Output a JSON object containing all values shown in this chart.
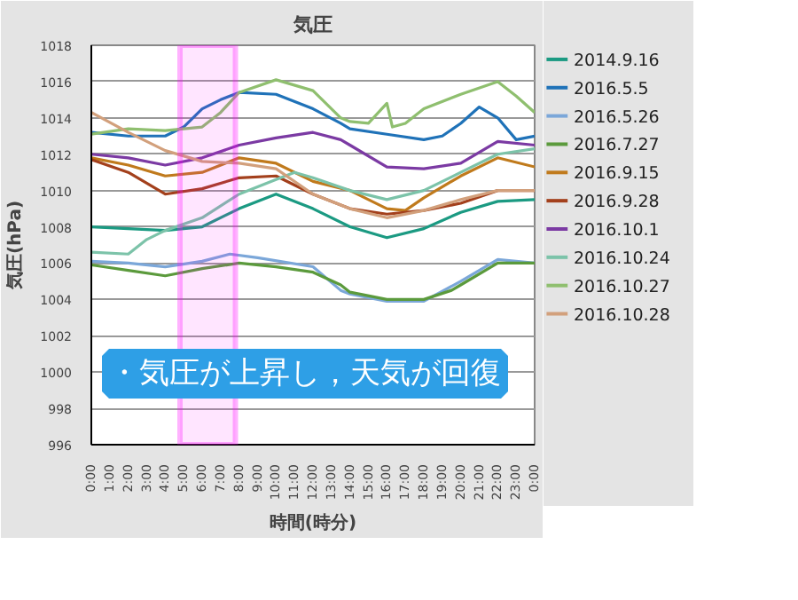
{
  "chart_data": {
    "type": "line",
    "title": "気圧",
    "xlabel": "時間(時分)",
    "ylabel": "気圧(hPa)",
    "x": [
      0,
      2,
      4,
      6,
      8,
      10,
      12,
      14,
      16,
      18,
      20,
      22,
      24
    ],
    "xlim": [
      0,
      24
    ],
    "xticks": [
      {
        "value": 0,
        "label": "0:00"
      },
      {
        "value": 1,
        "label": "1:00"
      },
      {
        "value": 2,
        "label": "2:00"
      },
      {
        "value": 3,
        "label": "3:00"
      },
      {
        "value": 4,
        "label": "4:00"
      },
      {
        "value": 5,
        "label": "5:00"
      },
      {
        "value": 6,
        "label": "6:00"
      },
      {
        "value": 7,
        "label": "7:00"
      },
      {
        "value": 8,
        "label": "8:00"
      },
      {
        "value": 9,
        "label": "9:00"
      },
      {
        "value": 10,
        "label": "10:00"
      },
      {
        "value": 11,
        "label": "11:00"
      },
      {
        "value": 12,
        "label": "12:00"
      },
      {
        "value": 13,
        "label": "13:00"
      },
      {
        "value": 14,
        "label": "14:00"
      },
      {
        "value": 15,
        "label": "15:00"
      },
      {
        "value": 16,
        "label": "16:00"
      },
      {
        "value": 17,
        "label": "17:00"
      },
      {
        "value": 18,
        "label": "18:00"
      },
      {
        "value": 19,
        "label": "19:00"
      },
      {
        "value": 20,
        "label": "20:00"
      },
      {
        "value": 21,
        "label": "21:00"
      },
      {
        "value": 22,
        "label": "22:00"
      },
      {
        "value": 23,
        "label": "23:00"
      },
      {
        "value": 24,
        "label": "0:00"
      }
    ],
    "ylim": [
      996,
      1018
    ],
    "yticks": [
      996,
      998,
      1000,
      1002,
      1004,
      1006,
      1008,
      1010,
      1012,
      1014,
      1016,
      1018
    ],
    "grid": "y",
    "legend": "right",
    "marker": "none",
    "bands": [
      {
        "axis": "x",
        "from": 4.8,
        "to": 7.8,
        "color": "#ff00ff"
      }
    ],
    "annotations": [
      "・気圧が上昇し，天気が回復"
    ],
    "series": [
      {
        "name": "2014.9.16",
        "color": "#1b9a82",
        "values": [
          1008.0,
          1007.9,
          1007.8,
          1008.0,
          1009.0,
          1009.8,
          1009.0,
          1008.0,
          1007.4,
          1007.9,
          1008.8,
          1009.4,
          1009.5
        ]
      },
      {
        "name": "2016.5.5",
        "color": "#1f72b8",
        "x": [
          0,
          2,
          4,
          5,
          6,
          7,
          8,
          10,
          12,
          13.5,
          14,
          16,
          18,
          19,
          20,
          21,
          22,
          23,
          24
        ],
        "values": [
          1013.2,
          1013.0,
          1013.0,
          1013.5,
          1014.5,
          1015.0,
          1015.4,
          1015.3,
          1014.5,
          1013.7,
          1013.4,
          1013.1,
          1012.8,
          1013.0,
          1013.7,
          1014.6,
          1014.0,
          1012.8,
          1013.0
        ]
      },
      {
        "name": "2016.5.26",
        "color": "#7ba7d9",
        "x": [
          0,
          2,
          4,
          6,
          7.5,
          9,
          12,
          13.5,
          14,
          16,
          18,
          20,
          22,
          24
        ],
        "values": [
          1006.1,
          1006.0,
          1005.8,
          1006.1,
          1006.5,
          1006.3,
          1005.8,
          1004.5,
          1004.3,
          1003.9,
          1003.9,
          1005.0,
          1006.2,
          1006.0
        ]
      },
      {
        "name": "2016.7.27",
        "color": "#5b9a3c",
        "x": [
          0,
          2,
          4,
          6,
          8,
          10,
          12,
          13.5,
          14,
          16,
          18,
          19.5,
          20,
          22,
          24
        ],
        "values": [
          1005.9,
          1005.6,
          1005.3,
          1005.7,
          1006.0,
          1005.8,
          1005.5,
          1004.8,
          1004.4,
          1004.0,
          1004.0,
          1004.5,
          1004.8,
          1006.0,
          1006.0
        ]
      },
      {
        "name": "2016.9.15",
        "color": "#c07a1c",
        "x": [
          0,
          2,
          4,
          6,
          8,
          10,
          12,
          14,
          16,
          17,
          18,
          20,
          22,
          24
        ],
        "values": [
          1011.8,
          1011.4,
          1010.8,
          1011.0,
          1011.8,
          1011.5,
          1010.5,
          1010.0,
          1009.0,
          1008.9,
          1009.6,
          1010.8,
          1011.8,
          1011.3
        ]
      },
      {
        "name": "2016.9.28",
        "color": "#a3401c",
        "x": [
          0,
          2,
          4,
          6,
          8,
          10,
          11,
          12,
          14,
          16,
          18,
          20,
          22,
          24
        ],
        "values": [
          1011.7,
          1011.0,
          1009.8,
          1010.1,
          1010.7,
          1010.8,
          1010.3,
          1009.8,
          1009.0,
          1008.7,
          1008.9,
          1009.3,
          1010.0,
          1010.0
        ]
      },
      {
        "name": "2016.10.1",
        "color": "#7b3aa3",
        "x": [
          0,
          2,
          4,
          6,
          8,
          10,
          12,
          13.5,
          14,
          16,
          18,
          20,
          22,
          24
        ],
        "values": [
          1012.0,
          1011.8,
          1011.4,
          1011.8,
          1012.5,
          1012.9,
          1013.2,
          1012.8,
          1012.5,
          1011.3,
          1011.2,
          1011.5,
          1012.7,
          1012.5
        ]
      },
      {
        "name": "2016.10.24",
        "color": "#7cc3a9",
        "x": [
          0,
          2,
          3,
          4,
          6,
          8,
          10,
          11,
          12,
          14,
          16,
          18,
          20,
          22,
          24
        ],
        "values": [
          1006.6,
          1006.5,
          1007.3,
          1007.8,
          1008.5,
          1009.8,
          1010.6,
          1011.0,
          1010.7,
          1010.0,
          1009.5,
          1010.0,
          1011.0,
          1012.0,
          1012.3
        ]
      },
      {
        "name": "2016.10.27",
        "color": "#8fbf6f",
        "x": [
          0,
          2,
          4,
          6,
          7,
          8,
          10,
          12,
          13.5,
          14,
          15,
          16,
          16.3,
          17,
          18,
          20,
          22,
          23,
          24
        ],
        "values": [
          1013.1,
          1013.4,
          1013.3,
          1013.5,
          1014.3,
          1015.4,
          1016.1,
          1015.5,
          1014.0,
          1013.8,
          1013.7,
          1014.8,
          1013.5,
          1013.7,
          1014.5,
          1015.3,
          1016.0,
          1015.2,
          1014.3
        ]
      },
      {
        "name": "2016.10.28",
        "color": "#d2a07c",
        "x": [
          0,
          2,
          4,
          6,
          8,
          10,
          12,
          13.5,
          14,
          16,
          18,
          20,
          22,
          24
        ],
        "values": [
          1014.3,
          1013.2,
          1012.2,
          1011.6,
          1011.5,
          1011.2,
          1009.8,
          1009.2,
          1009.0,
          1008.5,
          1008.9,
          1009.5,
          1010.0,
          1010.0
        ]
      }
    ]
  }
}
